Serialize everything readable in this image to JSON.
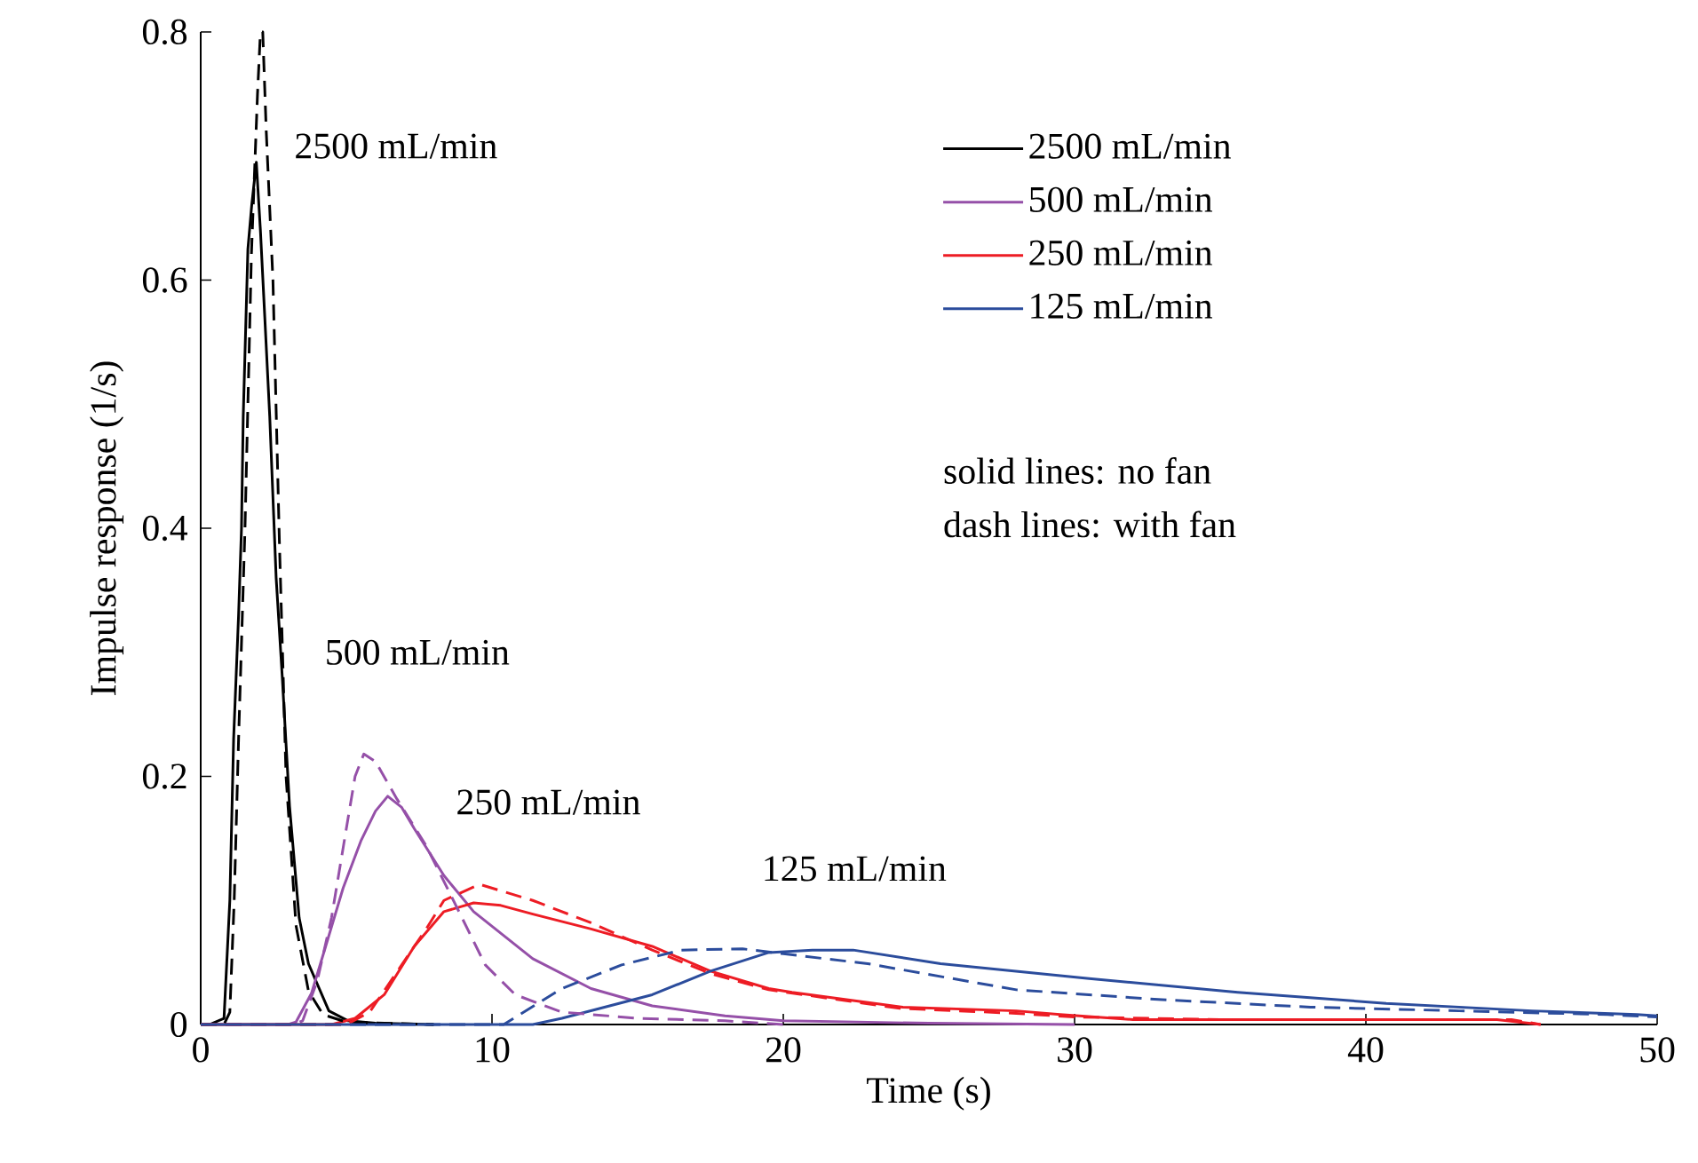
{
  "chart_data": {
    "type": "line",
    "xlabel": "Time (s)",
    "ylabel": "Impulse response (1/s)",
    "xlim": [
      0,
      50
    ],
    "ylim": [
      0,
      0.8
    ],
    "xticks": [
      0,
      10,
      20,
      30,
      40,
      50
    ],
    "yticks": [
      0,
      0.2,
      0.4,
      0.6,
      0.8
    ],
    "legend": "top right",
    "series": [
      {
        "name": "2500 mL/min",
        "color": "#000000",
        "line_style": "solid",
        "x": [
          0,
          0.3,
          0.8,
          1.0,
          1.13,
          1.3,
          1.4,
          1.46,
          1.62,
          1.75,
          1.91,
          2.05,
          2.2,
          2.37,
          2.59,
          2.8,
          3.05,
          3.38,
          3.7,
          4.4,
          5.06,
          6,
          8
        ],
        "values": [
          0,
          0,
          0.005,
          0.1,
          0.23,
          0.33,
          0.4,
          0.49,
          0.625,
          0.66,
          0.695,
          0.64,
          0.57,
          0.49,
          0.36,
          0.28,
          0.176,
          0.086,
          0.049,
          0.011,
          0.003,
          0.001,
          0
        ]
      },
      {
        "name": "500 mL/min",
        "color": "#9550a8",
        "line_style": "solid",
        "x": [
          0,
          3.0,
          3.27,
          3.8,
          4.29,
          4.89,
          5.5,
          6.0,
          6.42,
          6.9,
          7.33,
          8.35,
          9.37,
          11.4,
          13.4,
          15.5,
          18,
          20,
          25,
          30
        ],
        "values": [
          0,
          0,
          0.002,
          0.025,
          0.063,
          0.11,
          0.148,
          0.172,
          0.184,
          0.175,
          0.158,
          0.12,
          0.091,
          0.053,
          0.029,
          0.015,
          0.007,
          0.003,
          0.001,
          0
        ]
      },
      {
        "name": "250 mL/min",
        "color": "#ed1c24",
        "line_style": "solid",
        "x": [
          0,
          4.5,
          5.3,
          6.3,
          7.33,
          8.35,
          9.37,
          10.3,
          11.4,
          13.4,
          15.5,
          17.5,
          19.5,
          20.3,
          24.1,
          28,
          29.5,
          32,
          40,
          44.5,
          46
        ],
        "values": [
          0,
          0,
          0.005,
          0.024,
          0.063,
          0.091,
          0.098,
          0.096,
          0.089,
          0.077,
          0.063,
          0.043,
          0.029,
          0.026,
          0.014,
          0.011,
          0.008,
          0.004,
          0.004,
          0.004,
          0
        ]
      },
      {
        "name": "125 mL/min",
        "color": "#2b4c9c",
        "line_style": "solid",
        "x": [
          0,
          11.4,
          12.4,
          15.5,
          17.5,
          19.5,
          21,
          22.4,
          25.4,
          30.5,
          35.6,
          40.7,
          45.7,
          49.3,
          50
        ],
        "values": [
          0,
          0,
          0.005,
          0.024,
          0.043,
          0.058,
          0.06,
          0.06,
          0.049,
          0.037,
          0.026,
          0.017,
          0.011,
          0.008,
          0.007
        ]
      },
      {
        "color": "#000000",
        "line_style": "dashed",
        "x": [
          0,
          0.8,
          1.0,
          1.15,
          1.3,
          1.52,
          1.74,
          1.95,
          2.05,
          2.13,
          2.25,
          2.48,
          2.7,
          2.93,
          3.27,
          3.7,
          4.2,
          5,
          8
        ],
        "values": [
          0,
          0,
          0.01,
          0.1,
          0.23,
          0.4,
          0.62,
          0.75,
          0.8,
          0.8,
          0.72,
          0.6,
          0.39,
          0.2,
          0.08,
          0.027,
          0.008,
          0.002,
          0
        ]
      },
      {
        "color": "#9550a8",
        "line_style": "dashed",
        "x": [
          0,
          3.2,
          3.5,
          4.0,
          4.49,
          5.0,
          5.3,
          5.6,
          6.0,
          6.73,
          7.74,
          8.76,
          9.77,
          10.8,
          12.4,
          15,
          18,
          20
        ],
        "values": [
          0,
          0,
          0.003,
          0.035,
          0.086,
          0.158,
          0.2,
          0.218,
          0.212,
          0.182,
          0.144,
          0.096,
          0.048,
          0.024,
          0.01,
          0.005,
          0.003,
          0
        ]
      },
      {
        "color": "#ed1c24",
        "line_style": "dashed",
        "x": [
          0,
          5,
          5.8,
          6.9,
          7.74,
          8.35,
          9.57,
          11.4,
          13.4,
          15.5,
          17.5,
          19.5,
          24,
          28,
          30,
          35,
          40,
          45,
          46
        ],
        "values": [
          0,
          0,
          0.01,
          0.048,
          0.077,
          0.1,
          0.113,
          0.1,
          0.082,
          0.06,
          0.041,
          0.028,
          0.013,
          0.009,
          0.006,
          0.004,
          0.004,
          0.004,
          0
        ]
      },
      {
        "color": "#2b4c9c",
        "line_style": "dashed",
        "x": [
          0,
          10.4,
          12.4,
          14.45,
          16.5,
          18.6,
          20,
          22.9,
          28,
          33,
          38.1,
          43.2,
          48.3,
          50
        ],
        "values": [
          0,
          0,
          0.029,
          0.048,
          0.06,
          0.061,
          0.057,
          0.049,
          0.028,
          0.02,
          0.014,
          0.011,
          0.008,
          0.006
        ]
      }
    ],
    "annotations": [
      "2500 mL/min",
      "500 mL/min",
      "250 mL/min",
      "125 mL/min",
      "solid lines: no fan",
      "dash lines: with fan"
    ]
  }
}
